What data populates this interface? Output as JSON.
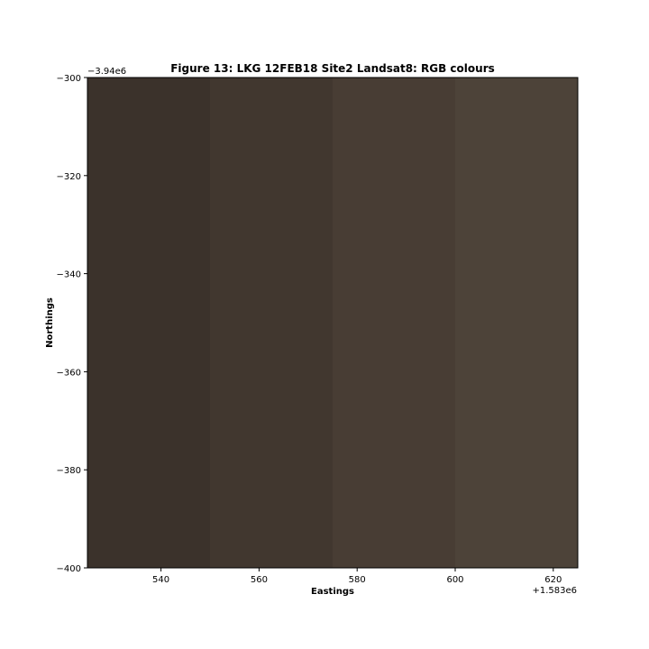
{
  "chart_data": {
    "type": "heatmap",
    "title": "Figure 13: LKG 12FEB18 Site2 Landsat8: RGB colours",
    "xlabel": "Eastings",
    "ylabel": "Northings",
    "x_offset_label": "+1.583e6",
    "y_offset_label": "−3.94e6",
    "xlim": [
      525,
      625
    ],
    "ylim": [
      -400,
      -300
    ],
    "x_ticks": [
      540,
      560,
      580,
      600,
      620
    ],
    "x_tick_labels": [
      "540",
      "560",
      "580",
      "600",
      "620"
    ],
    "y_ticks": [
      -300,
      -320,
      -340,
      -360,
      -380,
      -400
    ],
    "y_tick_labels": [
      "−300",
      "−320",
      "−340",
      "−360",
      "−380",
      "−400"
    ],
    "grid": false,
    "cells": [
      {
        "x0": 525,
        "x1": 550,
        "y0": -400,
        "y1": -300,
        "color": "#3b322b"
      },
      {
        "x0": 550,
        "x1": 575,
        "y0": -400,
        "y1": -300,
        "color": "#41372f"
      },
      {
        "x0": 575,
        "x1": 600,
        "y0": -400,
        "y1": -300,
        "color": "#483d34"
      },
      {
        "x0": 600,
        "x1": 625,
        "y0": -400,
        "y1": -300,
        "color": "#4d4339"
      }
    ]
  }
}
